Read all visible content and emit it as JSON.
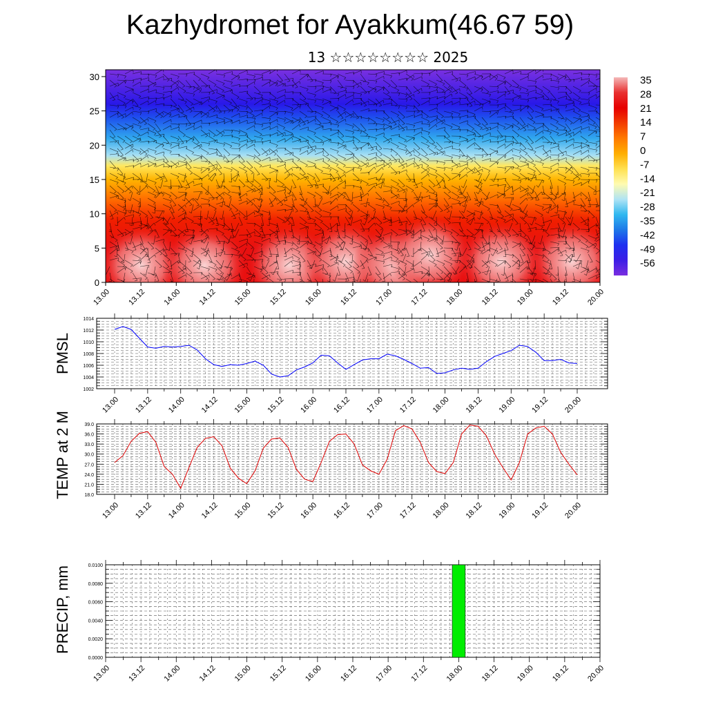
{
  "title": "Kazhydromet for Ayakkum(46.67 59)",
  "subtitle": "13 ☆☆☆☆☆☆☆☆ 2025",
  "chart_data": [
    {
      "type": "heatmap",
      "name": "temperature-height-section",
      "ylabel": "",
      "y_ticks": [
        0,
        5,
        10,
        15,
        20,
        25,
        30
      ],
      "ylim": [
        0,
        31
      ],
      "x_ticks": [
        "13.00",
        "13.12",
        "14.00",
        "14.12",
        "15.00",
        "15.12",
        "16.00",
        "16.12",
        "17.00",
        "17.12",
        "18.00",
        "18.12",
        "19.00",
        "19.12",
        "20.00"
      ],
      "colorbar_labels": [
        "35",
        "28",
        "21",
        "14",
        "7",
        "0",
        "-7",
        "-14",
        "-21",
        "-28",
        "-35",
        "-42",
        "-49",
        "-56"
      ],
      "colorbar_colors": [
        "#f4b8b8",
        "#e83030",
        "#e60000",
        "#f23c00",
        "#ff7a00",
        "#ffae00",
        "#ffe050",
        "#fffbb0",
        "#b0e4f4",
        "#30b8f0",
        "#1e78e8",
        "#1e30f0",
        "#3c1ee6",
        "#7a2ee0"
      ],
      "level_colors": [
        {
          "level": 0,
          "color": "#e81010"
        },
        {
          "level": 5,
          "color": "#e81010"
        },
        {
          "level": 9,
          "color": "#f01e00"
        },
        {
          "level": 12,
          "color": "#ff6a00"
        },
        {
          "level": 15,
          "color": "#ffb400"
        },
        {
          "level": 17,
          "color": "#ffe860"
        },
        {
          "level": 18.5,
          "color": "#a8e0f4"
        },
        {
          "level": 21,
          "color": "#30a8ee"
        },
        {
          "level": 24,
          "color": "#1e50ee"
        },
        {
          "level": 26,
          "color": "#2818e8"
        },
        {
          "level": 31,
          "color": "#7a30e0"
        }
      ],
      "warm_blobs": [
        {
          "x": 0.5,
          "y": 2.5
        },
        {
          "x": 1.4,
          "y": 2.5
        },
        {
          "x": 2.6,
          "y": 2.5
        },
        {
          "x": 3.4,
          "y": 3.0
        },
        {
          "x": 4.1,
          "y": 2.5
        },
        {
          "x": 4.6,
          "y": 4.0
        },
        {
          "x": 5.6,
          "y": 3.0
        },
        {
          "x": 6.6,
          "y": 3.0
        }
      ]
    },
    {
      "type": "line",
      "name": "pmsl",
      "ylabel": "PMSL",
      "ylim": [
        1002,
        1014
      ],
      "y_ticks": [
        1002,
        1004,
        1006,
        1008,
        1010,
        1012,
        1014
      ],
      "x_ticks": [
        "13.00",
        "13.12",
        "14.00",
        "14.12",
        "15.00",
        "15.12",
        "16.00",
        "16.12",
        "17.00",
        "17.12",
        "18.00",
        "18.12",
        "19.00",
        "19.12",
        "20.00"
      ],
      "x_step_hours": 3,
      "color": "#0000ff",
      "values": [
        1012.1,
        1012.6,
        1012.1,
        1010.6,
        1009.1,
        1008.9,
        1009.2,
        1009.1,
        1009.2,
        1009.4,
        1008.6,
        1007.1,
        1006.1,
        1005.8,
        1006.1,
        1006.0,
        1006.3,
        1006.7,
        1006.0,
        1004.5,
        1004.0,
        1004.2,
        1005.2,
        1005.7,
        1006.4,
        1007.7,
        1007.6,
        1006.4,
        1005.3,
        1006.1,
        1006.9,
        1007.1,
        1007.1,
        1007.9,
        1007.6,
        1007.0,
        1006.3,
        1005.5,
        1005.6,
        1004.6,
        1004.7,
        1005.2,
        1005.5,
        1005.3,
        1005.5,
        1006.6,
        1007.5,
        1008.0,
        1008.5,
        1009.4,
        1009.2,
        1008.2,
        1006.8,
        1006.8,
        1007.0,
        1006.4,
        1006.3
      ]
    },
    {
      "type": "line",
      "name": "temp-2m",
      "ylabel": "TEMP at 2 M",
      "ylim": [
        18.0,
        39.0
      ],
      "y_ticks": [
        "18.0",
        "21.0",
        "24.0",
        "27.0",
        "30.0",
        "33.0",
        "36.0",
        "39.0"
      ],
      "x_ticks": [
        "13.00",
        "13.12",
        "14.00",
        "14.12",
        "15.00",
        "15.12",
        "16.00",
        "16.12",
        "17.00",
        "17.12",
        "18.00",
        "18.12",
        "19.00",
        "19.12",
        "20.00"
      ],
      "x_step_hours": 3,
      "color": "#e00000",
      "values": [
        27.5,
        29.5,
        33.8,
        36.2,
        36.7,
        33.5,
        26.3,
        24.0,
        19.8,
        26.0,
        32.0,
        34.7,
        35.2,
        32.5,
        25.8,
        22.8,
        21.2,
        25.0,
        31.8,
        34.5,
        34.8,
        32.0,
        25.5,
        22.5,
        21.8,
        27.5,
        33.8,
        35.8,
        36.0,
        33.0,
        26.8,
        25.0,
        24.0,
        28.5,
        37.0,
        38.5,
        37.5,
        33.5,
        27.5,
        24.8,
        24.2,
        27.5,
        36.0,
        38.7,
        38.3,
        35.5,
        30.0,
        26.0,
        22.3,
        27.5,
        36.0,
        37.8,
        38.3,
        36.0,
        30.5,
        27.0,
        23.8
      ]
    },
    {
      "type": "bar",
      "name": "precip",
      "ylabel": "PRECIP, mm",
      "ylim": [
        0.0,
        0.01
      ],
      "y_ticks": [
        "0.0000",
        "0.0020",
        "0.0040",
        "0.0060",
        "0.0080",
        "0.0100"
      ],
      "x_ticks": [
        "13.00",
        "13.12",
        "14.00",
        "14.12",
        "15.00",
        "15.12",
        "16.00",
        "16.12",
        "17.00",
        "17.12",
        "18.00",
        "18.12",
        "19.00",
        "19.12",
        "20.00"
      ],
      "bar_color": "#00ee00",
      "bars": [
        {
          "x_hours": 120,
          "width_hours": 3,
          "value": 0.01
        }
      ]
    }
  ]
}
